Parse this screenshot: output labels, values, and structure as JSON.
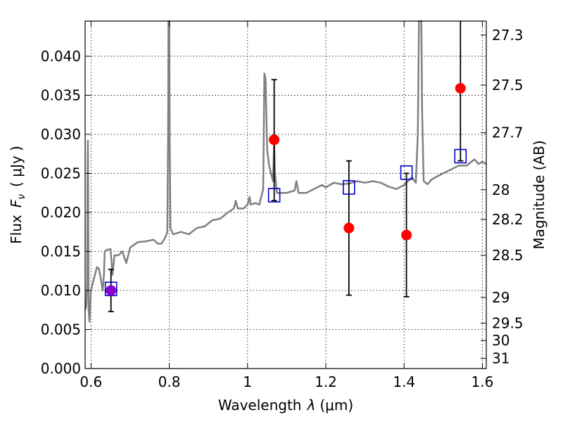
{
  "chart_data": {
    "type": "scatter",
    "xlabel_main": "Wavelength",
    "xlabel_symbol": "λ",
    "xlabel_unit": "(μm)",
    "ylabel_main": "Flux",
    "ylabel_symbol": "F",
    "ylabel_sub": "ν",
    "ylabel_unit": "( μJy )",
    "y2label": "Magnitude (AB)",
    "xlim": [
      0.585,
      1.61
    ],
    "ylim": [
      0.0,
      0.0445
    ],
    "grid": true,
    "x_ticks": [
      {
        "value": 0.6,
        "label": "0.6"
      },
      {
        "value": 0.8,
        "label": "0.8"
      },
      {
        "value": 1.0,
        "label": "1"
      },
      {
        "value": 1.2,
        "label": "1.2"
      },
      {
        "value": 1.4,
        "label": "1.4"
      },
      {
        "value": 1.6,
        "label": "1.6"
      }
    ],
    "y_ticks": [
      {
        "value": 0.0,
        "label": "0.000"
      },
      {
        "value": 0.005,
        "label": "0.005"
      },
      {
        "value": 0.01,
        "label": "0.010"
      },
      {
        "value": 0.015,
        "label": "0.015"
      },
      {
        "value": 0.02,
        "label": "0.020"
      },
      {
        "value": 0.025,
        "label": "0.025"
      },
      {
        "value": 0.03,
        "label": "0.030"
      },
      {
        "value": 0.035,
        "label": "0.035"
      },
      {
        "value": 0.04,
        "label": "0.040"
      }
    ],
    "y2_ticks": [
      {
        "flux": 0.0427,
        "label": "27.3"
      },
      {
        "flux": 0.0363,
        "label": "27.5"
      },
      {
        "flux": 0.0302,
        "label": "27.7"
      },
      {
        "flux": 0.0229,
        "label": "28"
      },
      {
        "flux": 0.0191,
        "label": "28.2"
      },
      {
        "flux": 0.0145,
        "label": "28.5"
      },
      {
        "flux": 0.0091,
        "label": "29"
      },
      {
        "flux": 0.0058,
        "label": "29.5"
      },
      {
        "flux": 0.0036,
        "label": "30"
      },
      {
        "flux": 0.0013,
        "label": "31"
      }
    ],
    "spectrum": {
      "color": "#808080",
      "points": [
        [
          0.585,
          0.0075
        ],
        [
          0.588,
          0.008
        ],
        [
          0.59,
          0.011
        ],
        [
          0.591,
          0.024
        ],
        [
          0.592,
          0.0292
        ],
        [
          0.593,
          0.02
        ],
        [
          0.594,
          0.0075
        ],
        [
          0.596,
          0.006
        ],
        [
          0.6,
          0.01
        ],
        [
          0.605,
          0.011
        ],
        [
          0.61,
          0.012
        ],
        [
          0.615,
          0.013
        ],
        [
          0.62,
          0.0128
        ],
        [
          0.625,
          0.0115
        ],
        [
          0.63,
          0.01
        ],
        [
          0.633,
          0.012
        ],
        [
          0.635,
          0.015
        ],
        [
          0.64,
          0.0152
        ],
        [
          0.65,
          0.0153
        ],
        [
          0.655,
          0.012
        ],
        [
          0.66,
          0.0145
        ],
        [
          0.67,
          0.0145
        ],
        [
          0.68,
          0.015
        ],
        [
          0.69,
          0.0135
        ],
        [
          0.7,
          0.0155
        ],
        [
          0.72,
          0.0162
        ],
        [
          0.74,
          0.0163
        ],
        [
          0.76,
          0.0165
        ],
        [
          0.77,
          0.016
        ],
        [
          0.78,
          0.016
        ],
        [
          0.79,
          0.0168
        ],
        [
          0.795,
          0.0175
        ],
        [
          0.797,
          0.03
        ],
        [
          0.798,
          0.0445
        ],
        [
          0.799,
          0.0445
        ],
        [
          0.8,
          0.0445
        ],
        [
          0.801,
          0.03
        ],
        [
          0.803,
          0.018
        ],
        [
          0.81,
          0.0172
        ],
        [
          0.83,
          0.0175
        ],
        [
          0.85,
          0.0172
        ],
        [
          0.87,
          0.018
        ],
        [
          0.89,
          0.0182
        ],
        [
          0.91,
          0.019
        ],
        [
          0.93,
          0.0192
        ],
        [
          0.95,
          0.02
        ],
        [
          0.965,
          0.0205
        ],
        [
          0.97,
          0.0215
        ],
        [
          0.975,
          0.0205
        ],
        [
          0.99,
          0.0205
        ],
        [
          1.0,
          0.021
        ],
        [
          1.005,
          0.022
        ],
        [
          1.008,
          0.021
        ],
        [
          1.02,
          0.0212
        ],
        [
          1.03,
          0.021
        ],
        [
          1.04,
          0.023
        ],
        [
          1.043,
          0.0378
        ],
        [
          1.046,
          0.037
        ],
        [
          1.05,
          0.028
        ],
        [
          1.055,
          0.026
        ],
        [
          1.06,
          0.025
        ],
        [
          1.065,
          0.024
        ],
        [
          1.068,
          0.029
        ],
        [
          1.07,
          0.025
        ],
        [
          1.075,
          0.0225
        ],
        [
          1.08,
          0.0225
        ],
        [
          1.1,
          0.0225
        ],
        [
          1.12,
          0.0228
        ],
        [
          1.125,
          0.024
        ],
        [
          1.13,
          0.0225
        ],
        [
          1.15,
          0.0225
        ],
        [
          1.17,
          0.023
        ],
        [
          1.19,
          0.0235
        ],
        [
          1.2,
          0.0232
        ],
        [
          1.22,
          0.0238
        ],
        [
          1.24,
          0.0236
        ],
        [
          1.26,
          0.0237
        ],
        [
          1.28,
          0.024
        ],
        [
          1.3,
          0.0238
        ],
        [
          1.32,
          0.024
        ],
        [
          1.34,
          0.0238
        ],
        [
          1.36,
          0.0233
        ],
        [
          1.38,
          0.023
        ],
        [
          1.4,
          0.0235
        ],
        [
          1.41,
          0.024
        ],
        [
          1.42,
          0.0245
        ],
        [
          1.43,
          0.0238
        ],
        [
          1.435,
          0.03
        ],
        [
          1.438,
          0.0445
        ],
        [
          1.441,
          0.0445
        ],
        [
          1.444,
          0.0445
        ],
        [
          1.446,
          0.033
        ],
        [
          1.45,
          0.024
        ],
        [
          1.46,
          0.0236
        ],
        [
          1.47,
          0.0242
        ],
        [
          1.48,
          0.0245
        ],
        [
          1.5,
          0.025
        ],
        [
          1.52,
          0.0255
        ],
        [
          1.54,
          0.026
        ],
        [
          1.56,
          0.026
        ],
        [
          1.58,
          0.0268
        ],
        [
          1.59,
          0.0262
        ],
        [
          1.6,
          0.0265
        ],
        [
          1.61,
          0.0262
        ]
      ]
    },
    "observed": {
      "color": "#ff0000",
      "points": [
        {
          "x": 0.651,
          "y": 0.01,
          "err_low": 0.0027,
          "err_high": 0.0027,
          "color": "#8800cc"
        },
        {
          "x": 1.068,
          "y": 0.0293,
          "err_low": 0.0078,
          "err_high": 0.0077
        },
        {
          "x": 1.259,
          "y": 0.018,
          "err_low": 0.0086,
          "err_high": 0.0086
        },
        {
          "x": 1.406,
          "y": 0.0171,
          "err_low": 0.0079,
          "err_high": 0.0079
        },
        {
          "x": 1.544,
          "y": 0.0359,
          "err_low": 0.0093,
          "err_high": 0.0093
        }
      ]
    },
    "model": {
      "color": "#0000cc",
      "points": [
        {
          "x": 0.651,
          "y": 0.0102
        },
        {
          "x": 1.068,
          "y": 0.0222
        },
        {
          "x": 1.259,
          "y": 0.0232
        },
        {
          "x": 1.406,
          "y": 0.0251
        },
        {
          "x": 1.544,
          "y": 0.0272
        }
      ]
    }
  }
}
